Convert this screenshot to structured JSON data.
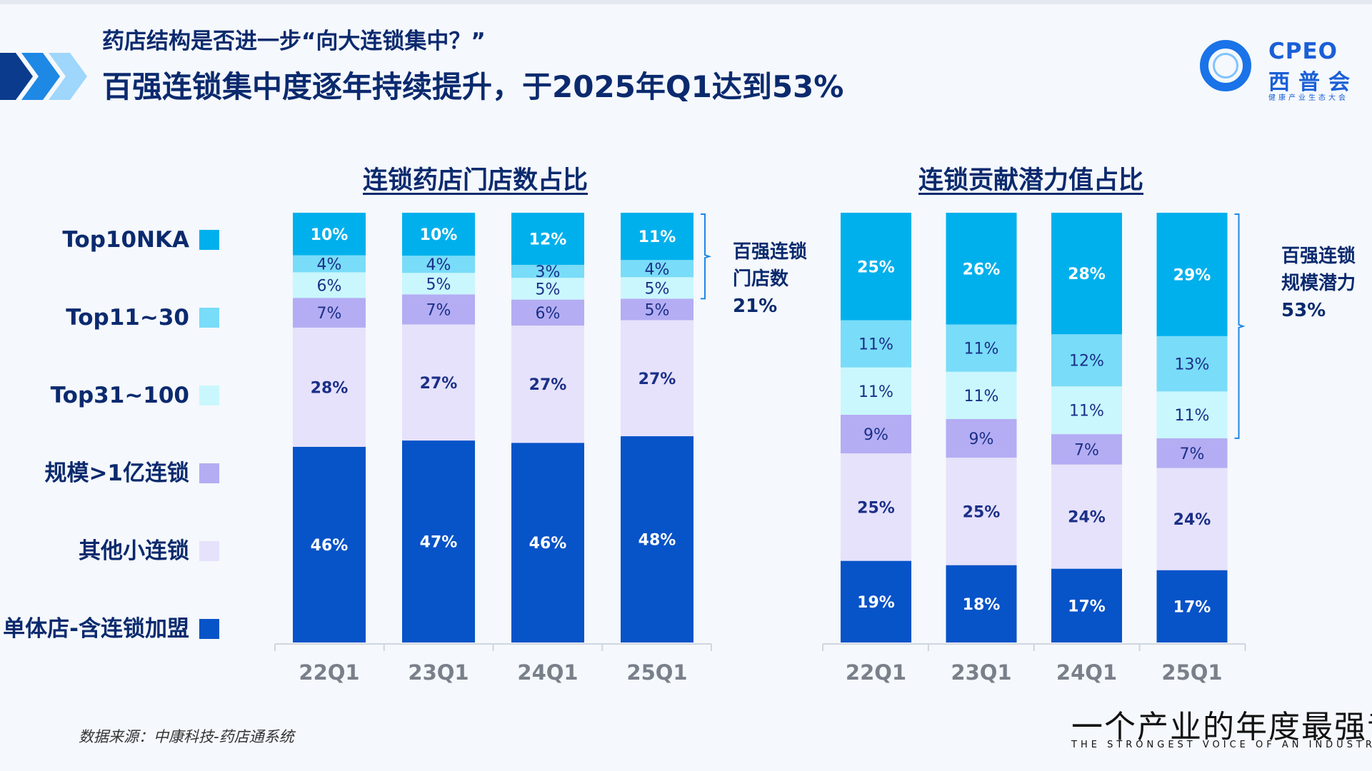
{
  "header": {
    "subtitle": "药店结构是否进一步“向大连锁集中？”",
    "title": "百强连锁集中度逐年持续提升，于2025年Q1达到53%"
  },
  "logo": {
    "main": "CPEO",
    "cn": "西普会",
    "small": "健康产业生态大会"
  },
  "legend": [
    {
      "label": "Top10NKA",
      "color": "#00b0ec"
    },
    {
      "label": "Top11~30",
      "color": "#79dcf8"
    },
    {
      "label": "Top31~100",
      "color": "#c9f7fd"
    },
    {
      "label": "规模>1亿连锁",
      "color": "#b4adf3"
    },
    {
      "label": "其他小连锁",
      "color": "#e6e2fb"
    },
    {
      "label": "单体店-含连锁加盟",
      "color": "#0753c8"
    }
  ],
  "colors": {
    "title": "#0b2a6e",
    "axis": "#cfd6df",
    "dark_label": "#1b2f88",
    "white_label": "#ffffff"
  },
  "chart_data": [
    {
      "type": "bar",
      "stacked": true,
      "title": "连锁药店门店数占比",
      "categories": [
        "22Q1",
        "23Q1",
        "24Q1",
        "25Q1"
      ],
      "series": [
        {
          "name": "单体店-含连锁加盟",
          "values": [
            46,
            47,
            46,
            48
          ],
          "labels": [
            "46%",
            "47%",
            "46%",
            "48%"
          ]
        },
        {
          "name": "其他小连锁",
          "values": [
            28,
            27,
            27,
            27
          ],
          "labels": [
            "28%",
            "27%",
            "27%",
            "27%"
          ]
        },
        {
          "name": "规模>1亿连锁",
          "values": [
            7,
            7,
            6,
            5
          ],
          "labels": [
            "7%",
            "7%",
            "6%",
            "5%"
          ]
        },
        {
          "name": "Top31~100",
          "values": [
            6,
            5,
            5,
            5
          ],
          "labels": [
            "6%",
            "5%",
            "5%",
            "5%"
          ]
        },
        {
          "name": "Top11~30",
          "values": [
            4,
            4,
            3,
            4
          ],
          "labels": [
            "4%",
            "4%",
            "3%",
            "4%"
          ]
        },
        {
          "name": "Top10NKA",
          "values": [
            10,
            10,
            12,
            11
          ],
          "labels": [
            "10%",
            "10%",
            "12%",
            "11%"
          ]
        }
      ],
      "annotation": {
        "lines": [
          "百强连锁",
          "门店数",
          "21%"
        ]
      }
    },
    {
      "type": "bar",
      "stacked": true,
      "title": "连锁贡献潜力值占比",
      "categories": [
        "22Q1",
        "23Q1",
        "24Q1",
        "25Q1"
      ],
      "series": [
        {
          "name": "单体店-含连锁加盟",
          "values": [
            19,
            18,
            17,
            17
          ],
          "labels": [
            "19%",
            "18%",
            "17%",
            "17%"
          ]
        },
        {
          "name": "其他小连锁",
          "values": [
            25,
            25,
            24,
            24
          ],
          "labels": [
            "25%",
            "25%",
            "24%",
            "24%"
          ]
        },
        {
          "name": "规模>1亿连锁",
          "values": [
            9,
            9,
            7,
            7
          ],
          "labels": [
            "9%",
            "9%",
            "7%",
            "7%"
          ]
        },
        {
          "name": "Top31~100",
          "values": [
            11,
            11,
            11,
            11
          ],
          "labels": [
            "11%",
            "11%",
            "11%",
            "11%"
          ]
        },
        {
          "name": "Top11~30",
          "values": [
            11,
            11,
            12,
            13
          ],
          "labels": [
            "11%",
            "11%",
            "12%",
            "13%"
          ]
        },
        {
          "name": "Top10NKA",
          "values": [
            25,
            26,
            28,
            29
          ],
          "labels": [
            "25%",
            "26%",
            "28%",
            "29%"
          ]
        }
      ],
      "annotation": {
        "lines": [
          "百强连锁",
          "规模潜力",
          "53%"
        ]
      }
    }
  ],
  "footer": {
    "source": "数据来源：中康科技-药店通系统",
    "slogan": "一个产业的年度最强音",
    "slogan_en": "THE STRONGEST VOICE OF AN INDUSTRY"
  }
}
